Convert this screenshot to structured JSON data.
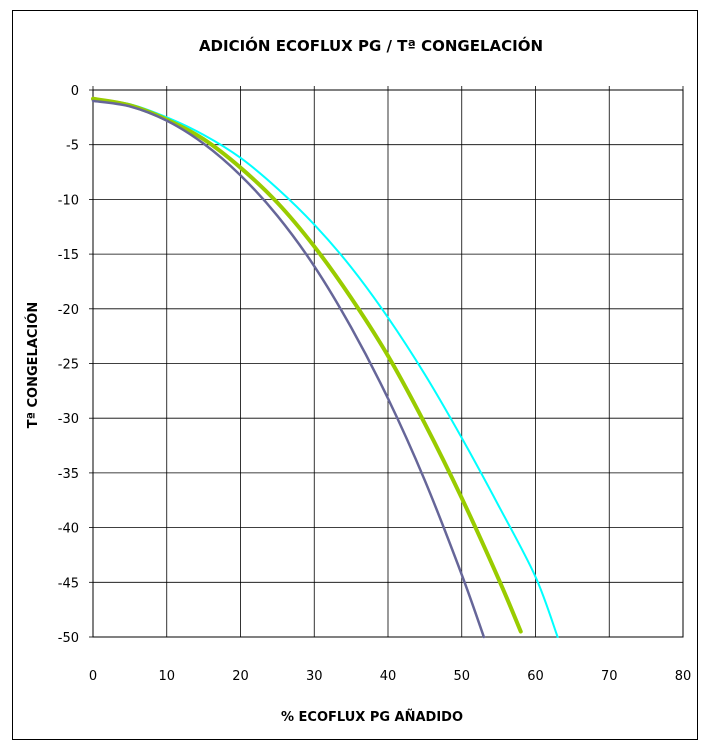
{
  "chart_data": {
    "type": "line",
    "title": "ADICIÓN ECOFLUX PG / Tª CONGELACIÓN",
    "xlabel": "% ECOFLUX PG AÑADIDO",
    "ylabel": "Tª CONGELACIÓN",
    "xlim": [
      0,
      80
    ],
    "ylim": [
      -50,
      0
    ],
    "xticks": [
      "0",
      "10",
      "20",
      "30",
      "40",
      "50",
      "60",
      "70",
      "80"
    ],
    "yticks": [
      "0",
      "-5",
      "-10",
      "-15",
      "-20",
      "-25",
      "-30",
      "-35",
      "-40",
      "-45",
      "-50"
    ],
    "grid": true,
    "legend": "none",
    "series": [
      {
        "color": "#00ffff",
        "width": 2,
        "points": [
          [
            0,
            -0.8
          ],
          [
            5,
            -1.3
          ],
          [
            10,
            -2.5
          ],
          [
            15,
            -4.1
          ],
          [
            20,
            -6.2
          ],
          [
            25,
            -9.0
          ],
          [
            30,
            -12.3
          ],
          [
            35,
            -16.2
          ],
          [
            40,
            -20.8
          ],
          [
            45,
            -26.0
          ],
          [
            50,
            -31.8
          ],
          [
            55,
            -38.0
          ],
          [
            60,
            -44.5
          ],
          [
            63,
            -50
          ]
        ]
      },
      {
        "color": "#99cc00",
        "width": 4,
        "points": [
          [
            0,
            -0.8
          ],
          [
            5,
            -1.4
          ],
          [
            10,
            -2.7
          ],
          [
            15,
            -4.5
          ],
          [
            20,
            -7.1
          ],
          [
            25,
            -10.3
          ],
          [
            30,
            -14.3
          ],
          [
            35,
            -19.0
          ],
          [
            40,
            -24.3
          ],
          [
            45,
            -30.5
          ],
          [
            50,
            -37.3
          ],
          [
            55,
            -44.7
          ],
          [
            58,
            -49.5
          ]
        ]
      },
      {
        "color": "#666699",
        "width": 2.5,
        "points": [
          [
            0,
            -1.0
          ],
          [
            5,
            -1.5
          ],
          [
            10,
            -2.8
          ],
          [
            15,
            -4.9
          ],
          [
            20,
            -7.8
          ],
          [
            25,
            -11.5
          ],
          [
            30,
            -16.1
          ],
          [
            35,
            -21.7
          ],
          [
            40,
            -28.2
          ],
          [
            45,
            -35.7
          ],
          [
            50,
            -44.3
          ],
          [
            53,
            -50
          ]
        ]
      }
    ]
  }
}
